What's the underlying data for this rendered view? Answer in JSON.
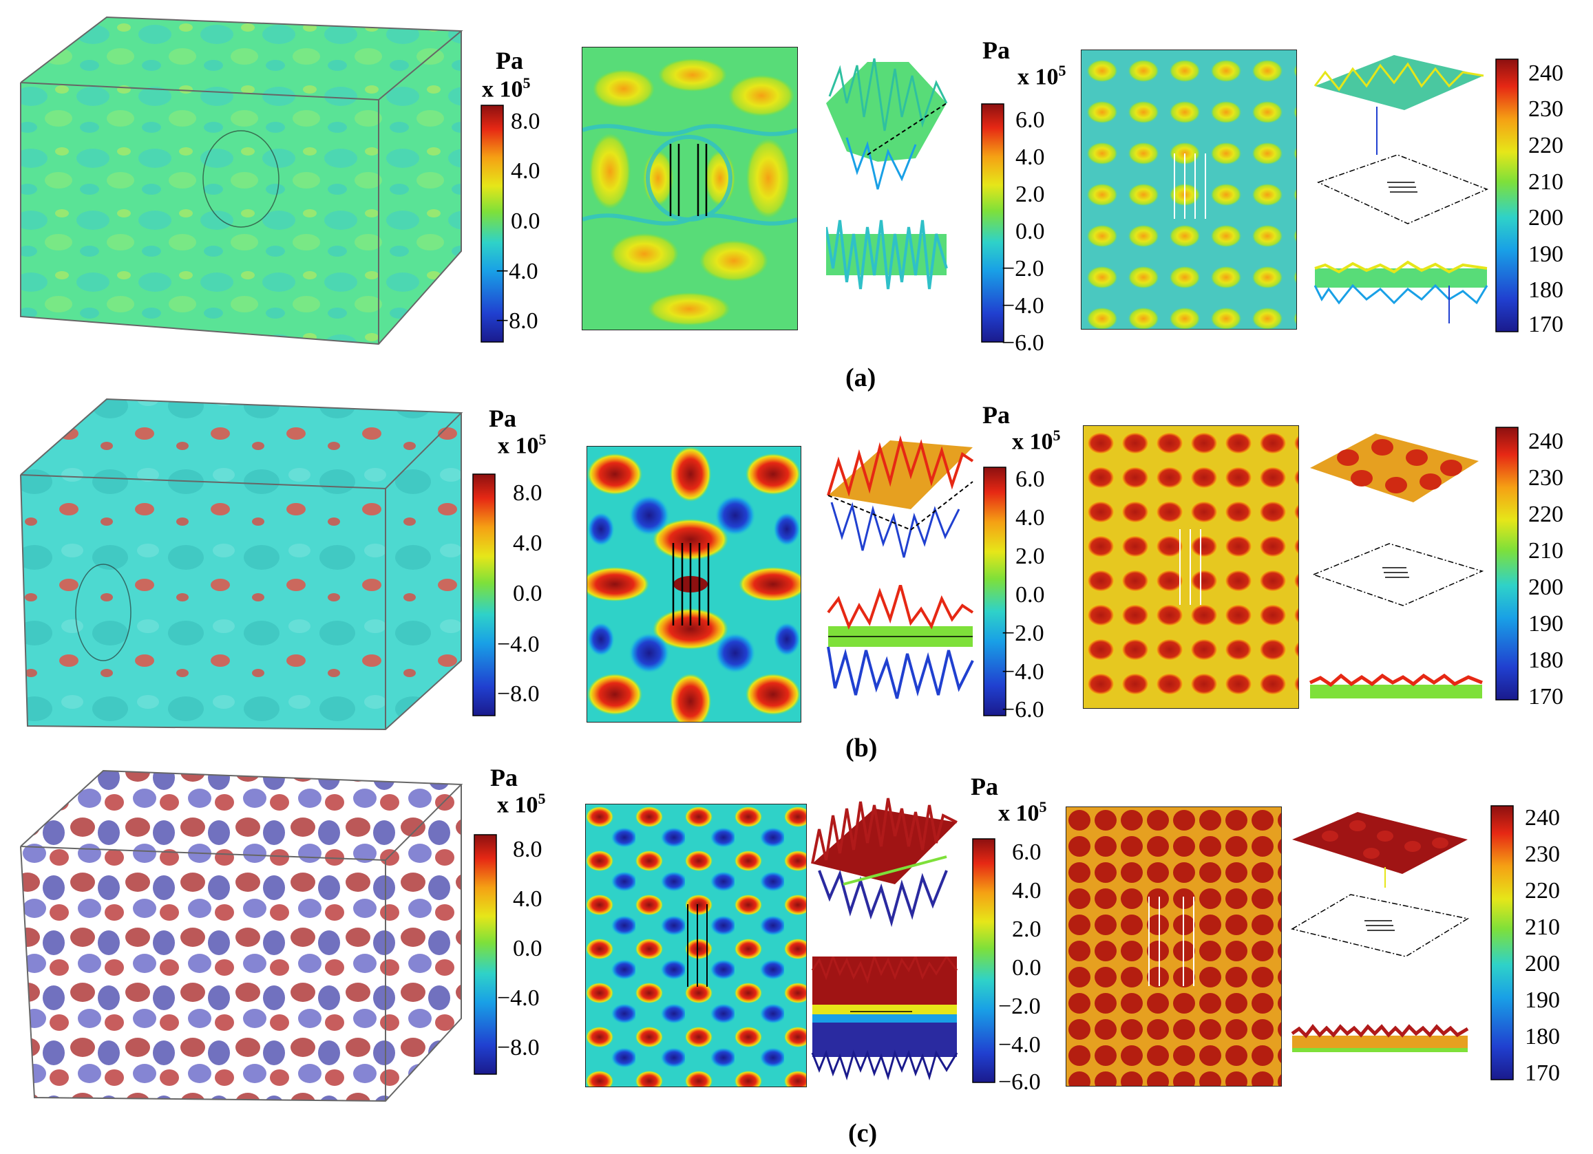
{
  "colors": {
    "jet": [
      "#1a1a8c",
      "#2040d0",
      "#19a0e6",
      "#2fd2c8",
      "#7ee03a",
      "#e6e619",
      "#f5a014",
      "#e62814",
      "#8c1010"
    ],
    "row_a_field": "#3fe08a",
    "row_b_field": "#3ad4c8",
    "row_c_red": "#a01414",
    "row_c_blue": "#2a2aa0"
  },
  "rows": [
    {
      "caption": "(a)",
      "pressure_unit": "Pa",
      "pressure_scale": "x 10",
      "pressure_exp": "5",
      "pressure_ticks_1": [
        "8.0",
        "4.0",
        "0.0",
        "−4.0",
        "−8.0"
      ],
      "pressure_ticks_2": [
        "6.0",
        "4.0",
        "2.0",
        "0.0",
        "−2.0",
        "−4.0",
        "−6.0"
      ],
      "temp_ticks": [
        "240",
        "230",
        "220",
        "210",
        "200",
        "190",
        "180",
        "170"
      ]
    },
    {
      "caption": "(b)",
      "pressure_unit": "Pa",
      "pressure_scale": "x 10",
      "pressure_exp": "5",
      "pressure_ticks_1": [
        "8.0",
        "4.0",
        "0.0",
        "−4.0",
        "−8.0"
      ],
      "pressure_ticks_2": [
        "6.0",
        "4.0",
        "2.0",
        "0.0",
        "−2.0",
        "−4.0",
        "−6.0"
      ],
      "temp_ticks": [
        "240",
        "230",
        "220",
        "210",
        "200",
        "190",
        "180",
        "170"
      ]
    },
    {
      "caption": "(c)",
      "pressure_unit": "Pa",
      "pressure_scale": "x 10",
      "pressure_exp": "5",
      "pressure_ticks_1": [
        "8.0",
        "4.0",
        "0.0",
        "−4.0",
        "−8.0"
      ],
      "pressure_ticks_2": [
        "6.0",
        "4.0",
        "2.0",
        "0.0",
        "−2.0",
        "−4.0",
        "−6.0"
      ],
      "temp_ticks": [
        "240",
        "230",
        "220",
        "210",
        "200",
        "190",
        "180",
        "170"
      ]
    }
  ]
}
